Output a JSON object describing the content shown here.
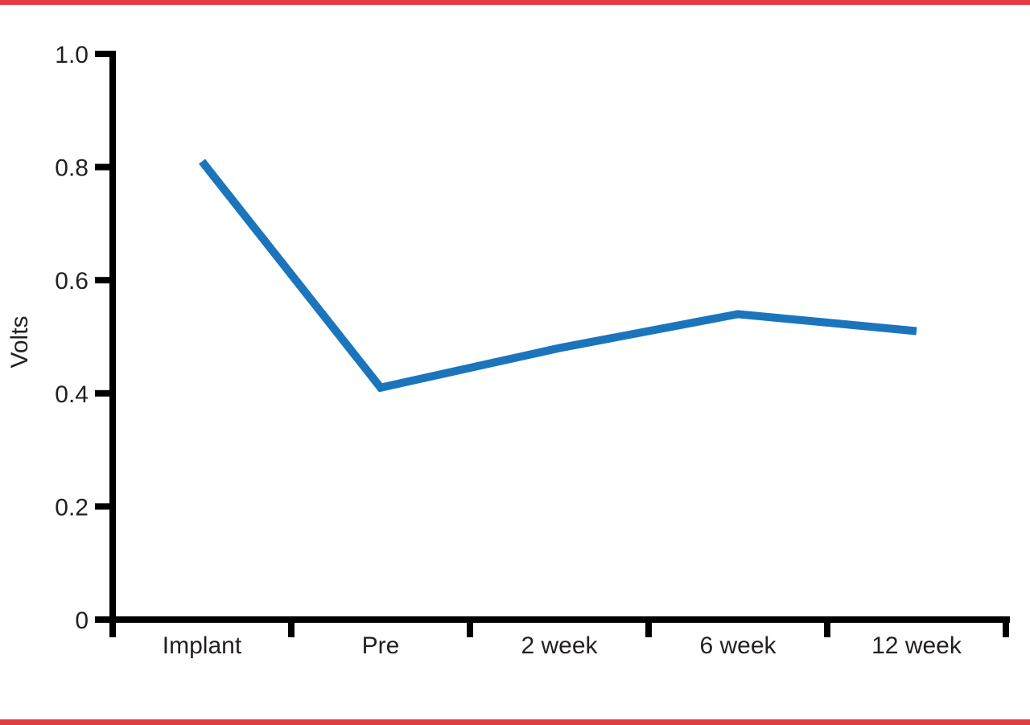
{
  "page": {
    "background": "#ffffff"
  },
  "borders": {
    "top_color": "#e23b41",
    "bottom_color": "#e23b41"
  },
  "colors": {
    "axis": "#000000",
    "text": "#231f20",
    "line_blue": "#1b75bc",
    "border_red": "#e23b41"
  },
  "chart_data": {
    "type": "line",
    "title": "",
    "xlabel": "",
    "ylabel": "Volts",
    "categories": [
      "Implant",
      "Pre",
      "2 week",
      "6 week",
      "12 week"
    ],
    "series": [
      {
        "name": "Volts",
        "color": "#1b75bc",
        "values": [
          0.81,
          0.41,
          0.48,
          0.54,
          0.51
        ]
      }
    ],
    "y_ticks": [
      {
        "label": "0",
        "value": 0.0
      },
      {
        "label": "0.2",
        "value": 0.2
      },
      {
        "label": "0.4",
        "value": 0.4
      },
      {
        "label": "0.6",
        "value": 0.6
      },
      {
        "label": "0.8",
        "value": 0.8
      },
      {
        "label": "1.0",
        "value": 1.0
      }
    ],
    "ylim": [
      0,
      1.0
    ],
    "grid": false,
    "legend": "none",
    "markers": "none",
    "line_width": 10
  }
}
